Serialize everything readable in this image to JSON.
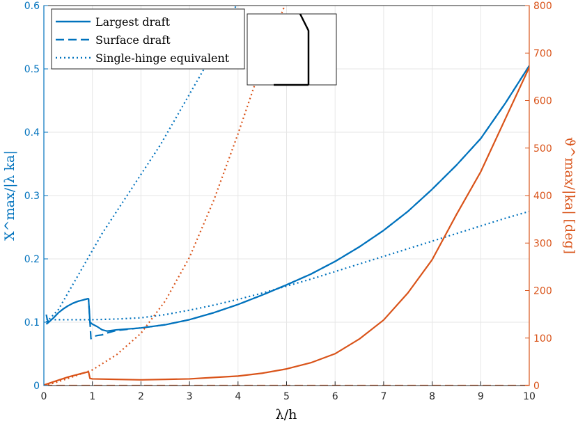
{
  "chart_data": {
    "type": "line",
    "xlabel": "λ/h",
    "ylabel_left": "X^max/|λ ka|",
    "ylabel_right": "ϑ^max/|ka| [deg]",
    "xlim": [
      0,
      10
    ],
    "ylim_left": [
      0,
      0.6
    ],
    "ylim_right": [
      0,
      800
    ],
    "x_ticks": [
      "0",
      "1",
      "2",
      "3",
      "4",
      "5",
      "6",
      "7",
      "8",
      "9",
      "10"
    ],
    "y_left_ticks": [
      "0",
      "0.1",
      "0.2",
      "0.3",
      "0.4",
      "0.5",
      "0.6"
    ],
    "y_right_ticks": [
      "0",
      "100",
      "200",
      "300",
      "400",
      "500",
      "600",
      "700",
      "800"
    ],
    "grid": true,
    "legend_position": "top-left",
    "colors": {
      "left": "#0072BD",
      "right": "#D95319"
    },
    "legend": [
      {
        "label": "Largest draft",
        "style": "solid"
      },
      {
        "label": "Surface draft",
        "style": "dashed"
      },
      {
        "label": "Single-hinge equivalent",
        "style": "dotted"
      }
    ],
    "series": [
      {
        "axis": "left",
        "style": "solid",
        "x": [
          0.05,
          0.1,
          0.2,
          0.3,
          0.4,
          0.5,
          0.6,
          0.7,
          0.8,
          0.9,
          0.92,
          0.95,
          1.0,
          1.1,
          1.2,
          1.3,
          1.5,
          2.0,
          2.5,
          3.0,
          3.5,
          4.0,
          4.5,
          5.0,
          5.5,
          6.0,
          6.5,
          7.0,
          7.5,
          8.0,
          8.5,
          9.0,
          9.5,
          10.0
        ],
        "y": [
          0.097,
          0.1,
          0.107,
          0.115,
          0.121,
          0.126,
          0.13,
          0.133,
          0.135,
          0.137,
          0.137,
          0.1,
          0.097,
          0.093,
          0.088,
          0.086,
          0.088,
          0.091,
          0.096,
          0.104,
          0.115,
          0.128,
          0.143,
          0.159,
          0.176,
          0.196,
          0.219,
          0.245,
          0.275,
          0.31,
          0.348,
          0.39,
          0.445,
          0.505
        ]
      },
      {
        "axis": "left",
        "style": "dashed",
        "x": [
          0.05,
          0.07,
          0.1,
          0.2,
          0.3,
          0.4,
          0.5,
          0.6,
          0.7,
          0.8,
          0.9,
          0.92,
          0.95,
          0.97,
          1.0,
          1.05,
          1.1,
          1.2,
          1.3,
          1.5,
          2.0,
          2.5,
          3.0,
          3.5,
          4.0,
          4.5,
          5.0,
          5.5,
          6.0,
          6.5,
          7.0,
          7.5,
          8.0,
          8.5,
          9.0,
          9.5,
          10.0
        ],
        "y": [
          0.112,
          0.104,
          0.1,
          0.107,
          0.115,
          0.121,
          0.126,
          0.13,
          0.133,
          0.135,
          0.137,
          0.137,
          0.1,
          0.074,
          0.076,
          0.078,
          0.079,
          0.08,
          0.083,
          0.087,
          0.091,
          0.096,
          0.104,
          0.115,
          0.128,
          0.143,
          0.159,
          0.176,
          0.196,
          0.219,
          0.245,
          0.275,
          0.31,
          0.348,
          0.39,
          0.445,
          0.505
        ]
      },
      {
        "axis": "left",
        "style": "dotted",
        "x": [
          0.05,
          0.2,
          0.5,
          1.0,
          1.5,
          2.0,
          2.5,
          3.0,
          3.5,
          4.0,
          4.5,
          5.0,
          5.5,
          6.0,
          6.5,
          7.0,
          7.5,
          8.0,
          8.5,
          9.0,
          9.5,
          10.0
        ],
        "y": [
          0.105,
          0.104,
          0.104,
          0.104,
          0.105,
          0.107,
          0.112,
          0.119,
          0.127,
          0.136,
          0.146,
          0.157,
          0.168,
          0.18,
          0.192,
          0.204,
          0.216,
          0.228,
          0.24,
          0.252,
          0.264,
          0.275
        ]
      },
      {
        "axis": "left",
        "style": "dotted",
        "x": [
          0.05,
          0.3,
          0.6,
          0.9,
          1.2,
          1.5,
          1.8,
          2.1,
          2.4,
          2.7,
          3.0,
          3.3,
          3.6,
          3.9,
          4.2
        ],
        "y": [
          0.1,
          0.12,
          0.16,
          0.2,
          0.24,
          0.275,
          0.31,
          0.345,
          0.38,
          0.42,
          0.46,
          0.5,
          0.545,
          0.59,
          0.64
        ]
      },
      {
        "axis": "right",
        "style": "solid",
        "x": [
          0.0,
          0.2,
          0.5,
          0.8,
          0.92,
          0.95,
          1.0,
          1.5,
          2.0,
          2.5,
          3.0,
          3.5,
          4.0,
          4.5,
          5.0,
          5.5,
          6.0,
          6.5,
          7.0,
          7.5,
          8.0,
          8.5,
          9.0,
          9.5,
          10.0
        ],
        "y": [
          1,
          8,
          18,
          26,
          29,
          15,
          14,
          13,
          12,
          13,
          14,
          17,
          20,
          26,
          35,
          48,
          67,
          98,
          138,
          195,
          265,
          360,
          450,
          560,
          670
        ]
      },
      {
        "axis": "right",
        "style": "dotted",
        "x": [
          0.0,
          0.2,
          0.5,
          1.0,
          1.5,
          2.0,
          2.5,
          3.0,
          3.5,
          4.0,
          4.5,
          5.0
        ],
        "y": [
          0,
          5,
          15,
          33,
          65,
          110,
          178,
          270,
          390,
          530,
          680,
          810
        ]
      },
      {
        "axis": "right",
        "style": "dashed",
        "x": [
          0,
          10
        ],
        "y": [
          0,
          0
        ]
      }
    ]
  }
}
